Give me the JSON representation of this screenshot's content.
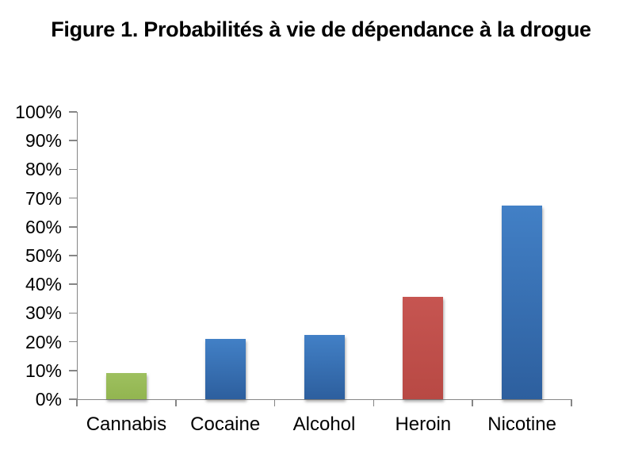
{
  "title": "Figure 1. Probabilités à vie de dépendance à la drogue",
  "chart_data": {
    "type": "bar",
    "title": "Figure 1. Probabilités à vie de dépendance à la drogue",
    "categories": [
      "Cannabis",
      "Cocaine",
      "Alcohol",
      "Heroin",
      "Nicotine"
    ],
    "values": [
      9,
      21,
      22.5,
      35.5,
      67.5
    ],
    "unit": "%",
    "yticks": [
      "0%",
      "10%",
      "20%",
      "30%",
      "40%",
      "50%",
      "60%",
      "70%",
      "80%",
      "90%",
      "100%"
    ],
    "ylim": [
      0,
      100
    ],
    "xlabel": "",
    "ylabel": "",
    "grid": false,
    "legend": null,
    "bar_color_keys": [
      "green",
      "blue",
      "blue",
      "red",
      "blue"
    ],
    "colors": {
      "green": {
        "top": "#9ec05f",
        "bottom": "#92b550"
      },
      "blue": {
        "top": "#4280c6",
        "bottom": "#2d5f9e"
      },
      "red": {
        "top": "#c65551",
        "bottom": "#b84944"
      }
    },
    "axis_color": "#868686",
    "text_color": "#000000",
    "background_color": "#ffffff"
  }
}
